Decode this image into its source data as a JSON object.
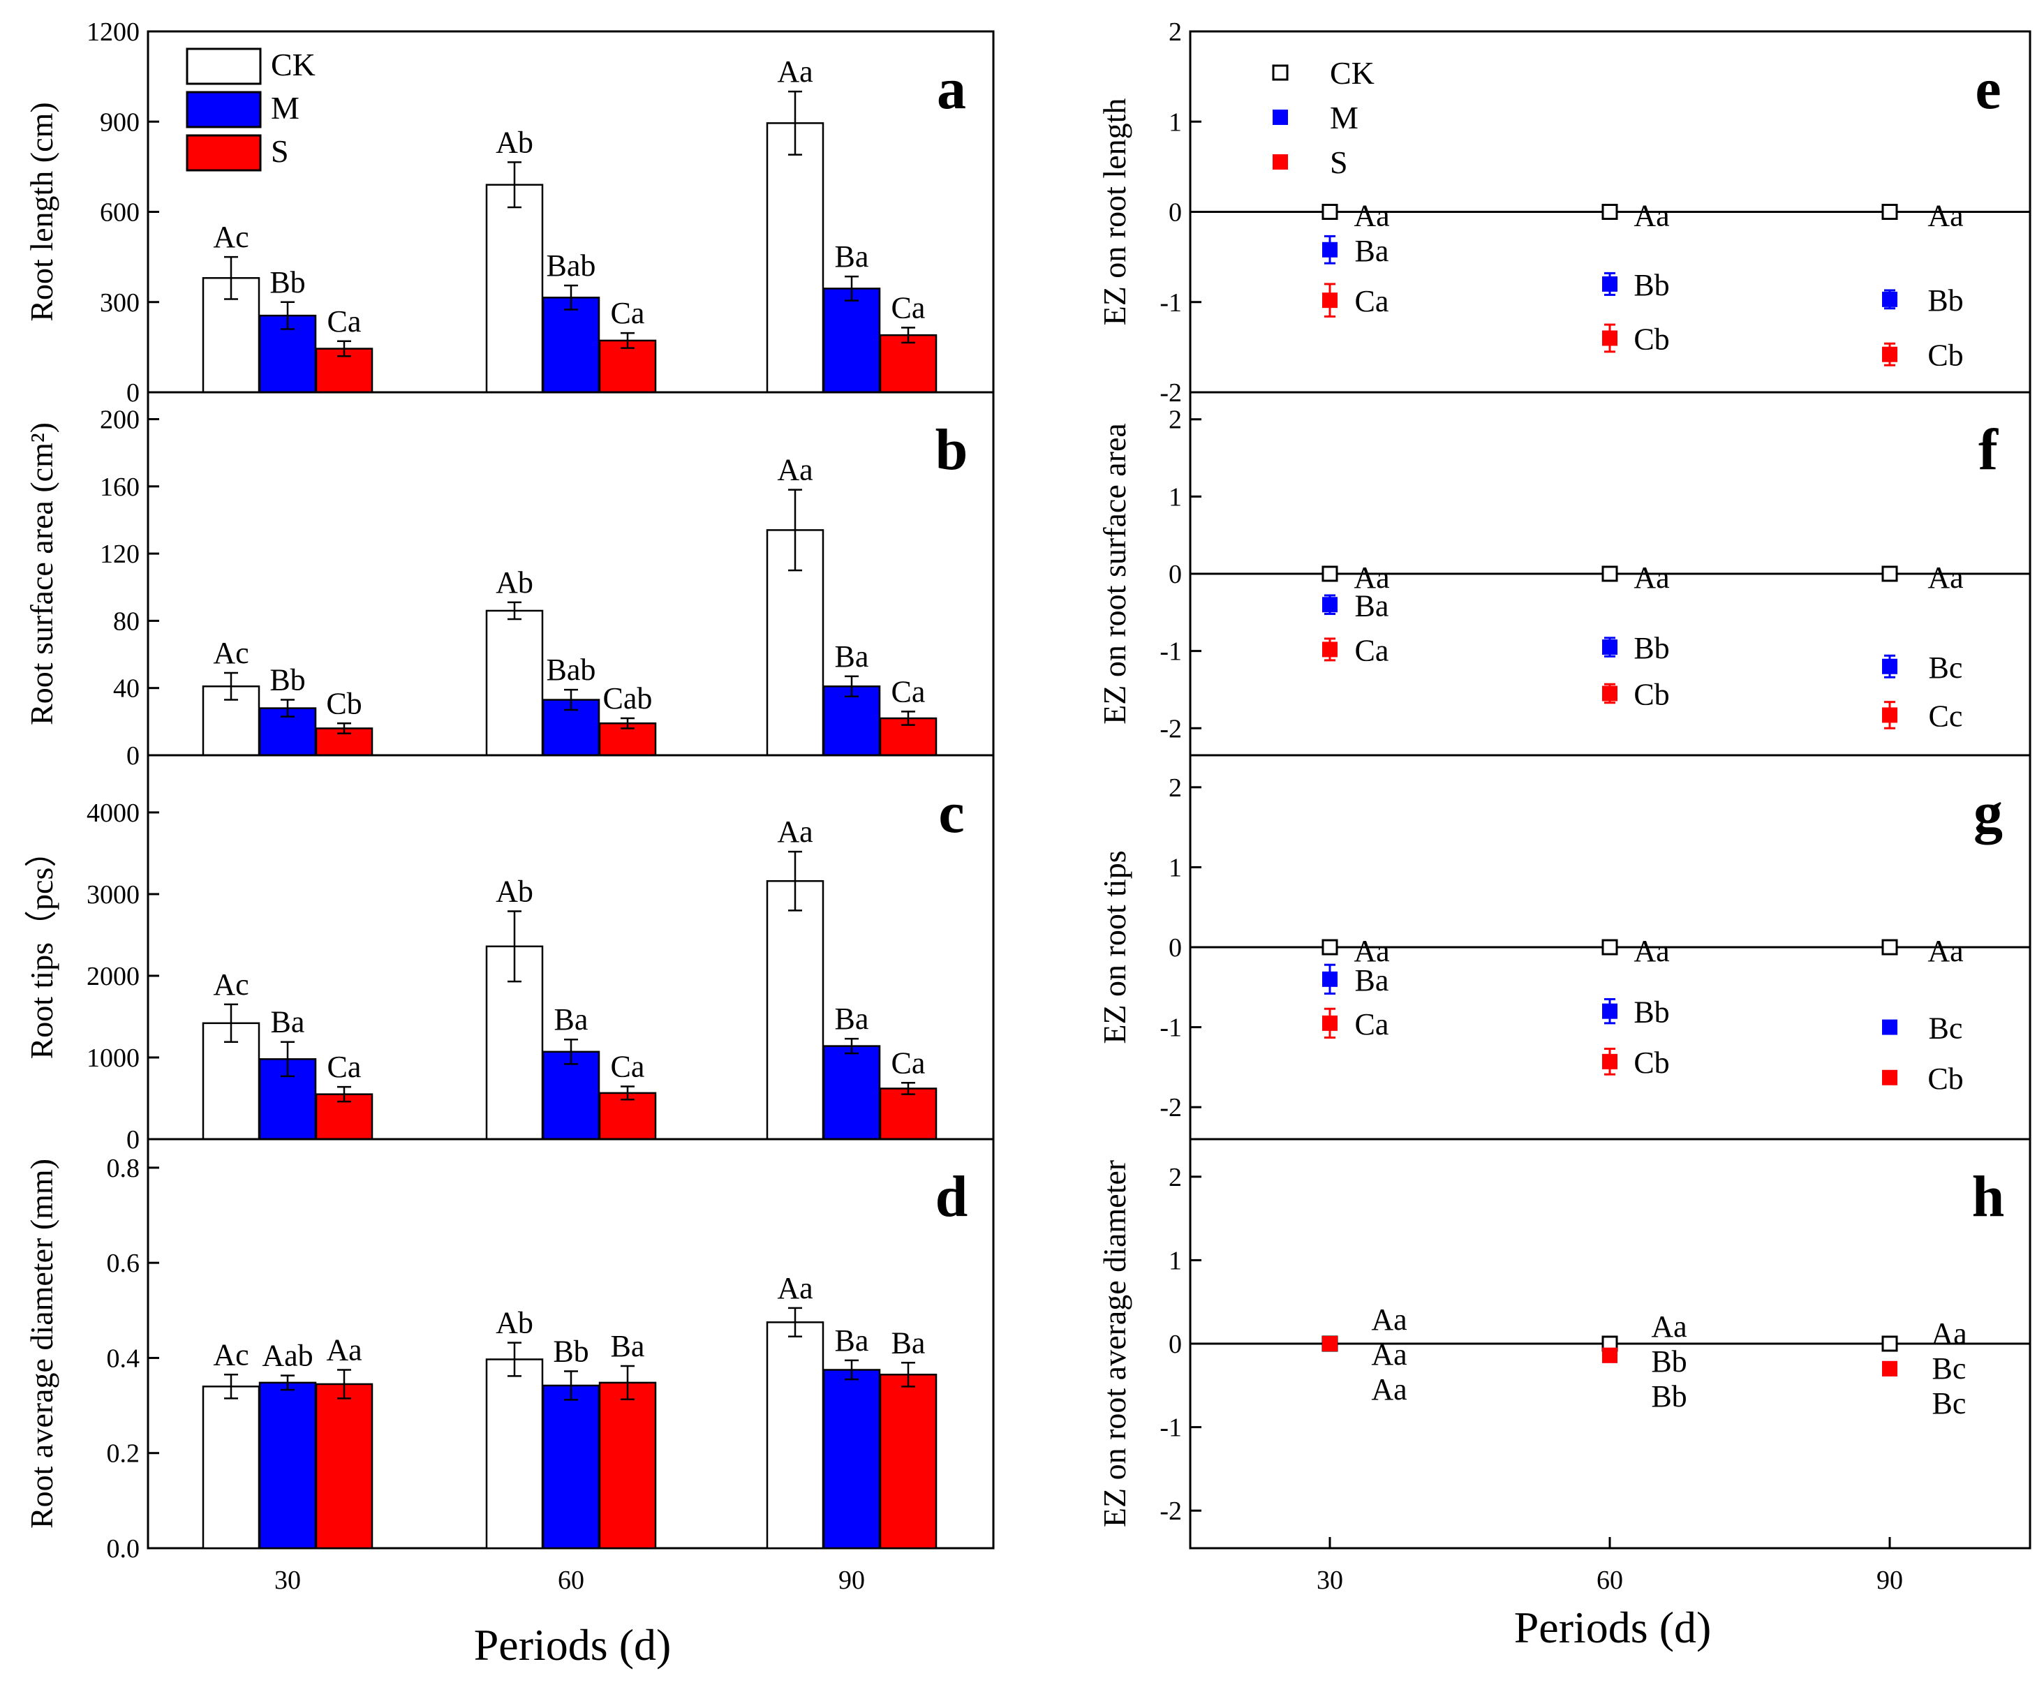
{
  "xaxis_title": "Periods (d)",
  "chart_data": [
    {
      "panel": "a",
      "type": "bar",
      "ylabel": "Root length (cm)",
      "categories": [
        "30",
        "60",
        "90"
      ],
      "ylim": [
        0,
        1200
      ],
      "yticks": [
        "0",
        "300",
        "600",
        "900",
        "1200"
      ],
      "series": [
        {
          "name": "CK",
          "values": [
            380,
            690,
            895
          ],
          "errors": [
            70,
            75,
            105
          ],
          "labels": [
            "Ac",
            "Ab",
            "Aa"
          ]
        },
        {
          "name": "M",
          "values": [
            255,
            315,
            345
          ],
          "errors": [
            45,
            40,
            40
          ],
          "labels": [
            "Bb",
            "Bab",
            "Ba"
          ]
        },
        {
          "name": "S",
          "values": [
            145,
            172,
            190
          ],
          "errors": [
            25,
            25,
            25
          ],
          "labels": [
            "Ca",
            "Ca",
            "Ca"
          ]
        }
      ]
    },
    {
      "panel": "b",
      "type": "bar",
      "ylabel": "Root surface area (cm²)",
      "categories": [
        "30",
        "60",
        "90"
      ],
      "ylim": [
        0,
        216
      ],
      "yticks": [
        "0",
        "40",
        "80",
        "120",
        "160",
        "200"
      ],
      "series": [
        {
          "name": "CK",
          "values": [
            41,
            86,
            134
          ],
          "errors": [
            8,
            5,
            24
          ],
          "labels": [
            "Ac",
            "Ab",
            "Aa"
          ]
        },
        {
          "name": "M",
          "values": [
            28,
            33,
            41
          ],
          "errors": [
            5,
            6,
            6
          ],
          "labels": [
            "Bb",
            "Bab",
            "Ba"
          ]
        },
        {
          "name": "S",
          "values": [
            16,
            19,
            22
          ],
          "errors": [
            3,
            3,
            4
          ],
          "labels": [
            "Cb",
            "Cab",
            "Ca"
          ]
        }
      ]
    },
    {
      "panel": "c",
      "type": "bar",
      "ylabel": "Root tips（pcs）",
      "categories": [
        "30",
        "60",
        "90"
      ],
      "ylim": [
        0,
        4700
      ],
      "yticks": [
        "0",
        "1000",
        "2000",
        "3000",
        "4000"
      ],
      "series": [
        {
          "name": "CK",
          "values": [
            1420,
            2360,
            3160
          ],
          "errors": [
            230,
            430,
            360
          ],
          "labels": [
            "Ac",
            "Ab",
            "Aa"
          ]
        },
        {
          "name": "M",
          "values": [
            980,
            1070,
            1140
          ],
          "errors": [
            210,
            150,
            90
          ],
          "labels": [
            "Ba",
            "Ba",
            "Ba"
          ]
        },
        {
          "name": "S",
          "values": [
            550,
            565,
            620
          ],
          "errors": [
            90,
            80,
            70
          ],
          "labels": [
            "Ca",
            "Ca",
            "Ca"
          ]
        }
      ]
    },
    {
      "panel": "d",
      "type": "bar",
      "ylabel": "Root average diameter (mm)",
      "categories": [
        "30",
        "60",
        "90"
      ],
      "ylim": [
        0,
        0.86
      ],
      "yticks": [
        "0.0",
        "0.2",
        "0.4",
        "0.6",
        "0.8"
      ],
      "series": [
        {
          "name": "CK",
          "values": [
            0.34,
            0.397,
            0.475
          ],
          "errors": [
            0.025,
            0.035,
            0.03
          ],
          "labels": [
            "Ac",
            "Ab",
            "Aa"
          ]
        },
        {
          "name": "M",
          "values": [
            0.348,
            0.342,
            0.375
          ],
          "errors": [
            0.015,
            0.03,
            0.02
          ],
          "labels": [
            "Aab",
            "Bb",
            "Ba"
          ]
        },
        {
          "name": "S",
          "values": [
            0.345,
            0.348,
            0.365
          ],
          "errors": [
            0.03,
            0.035,
            0.025
          ],
          "labels": [
            "Aa",
            "Ba",
            "Ba"
          ]
        }
      ]
    },
    {
      "panel": "e",
      "type": "scatter",
      "ylabel": "EZ on root length",
      "categories": [
        "30",
        "60",
        "90"
      ],
      "ylim": [
        -2,
        2
      ],
      "yticks": [
        "2",
        "1",
        "0",
        "-1",
        "-2"
      ],
      "series": [
        {
          "name": "CK",
          "values": [
            0,
            0,
            0
          ],
          "errors": [
            0,
            0,
            0
          ],
          "labels": [
            "Aa",
            "Aa",
            "Aa"
          ]
        },
        {
          "name": "M",
          "values": [
            -0.42,
            -0.8,
            -0.97
          ],
          "errors": [
            0.15,
            0.12,
            0.1
          ],
          "labels": [
            "Ba",
            "Bb",
            "Bb"
          ]
        },
        {
          "name": "S",
          "values": [
            -0.98,
            -1.4,
            -1.58
          ],
          "errors": [
            0.18,
            0.15,
            0.12
          ],
          "labels": [
            "Ca",
            "Cb",
            "Cb"
          ]
        }
      ]
    },
    {
      "panel": "f",
      "type": "scatter",
      "ylabel": "EZ on root surface area",
      "categories": [
        "30",
        "60",
        "90"
      ],
      "ylim": [
        -2.35,
        2.35
      ],
      "yticks": [
        "2",
        "1",
        "0",
        "-1",
        "-2"
      ],
      "series": [
        {
          "name": "CK",
          "values": [
            0,
            0,
            0
          ],
          "errors": [
            0,
            0,
            0
          ],
          "labels": [
            "Aa",
            "Aa",
            "Aa"
          ]
        },
        {
          "name": "M",
          "values": [
            -0.4,
            -0.95,
            -1.2
          ],
          "errors": [
            0.12,
            0.12,
            0.14
          ],
          "labels": [
            "Ba",
            "Bb",
            "Bc"
          ]
        },
        {
          "name": "S",
          "values": [
            -0.98,
            -1.55,
            -1.83
          ],
          "errors": [
            0.14,
            0.12,
            0.17
          ],
          "labels": [
            "Ca",
            "Cb",
            "Cc"
          ]
        }
      ]
    },
    {
      "panel": "g",
      "type": "scatter",
      "ylabel": "EZ on root tips",
      "categories": [
        "30",
        "60",
        "90"
      ],
      "ylim": [
        -2.4,
        2.4
      ],
      "yticks": [
        "2",
        "1",
        "0",
        "-1",
        "-2"
      ],
      "series": [
        {
          "name": "CK",
          "values": [
            0,
            0,
            0
          ],
          "errors": [
            0,
            0,
            0
          ],
          "labels": [
            "Aa",
            "Aa",
            "Aa"
          ]
        },
        {
          "name": "M",
          "values": [
            -0.4,
            -0.8,
            -1.0
          ],
          "errors": [
            0.18,
            0.15,
            0.05
          ],
          "labels": [
            "Ba",
            "Bb",
            "Bc"
          ]
        },
        {
          "name": "S",
          "values": [
            -0.95,
            -1.43,
            -1.63
          ],
          "errors": [
            0.18,
            0.16,
            0.08
          ],
          "labels": [
            "Ca",
            "Cb",
            "Cb"
          ]
        }
      ]
    },
    {
      "panel": "h",
      "type": "scatter",
      "ylabel": "EZ on root average diameter",
      "categories": [
        "30",
        "60",
        "90"
      ],
      "ylim": [
        -2.45,
        2.45
      ],
      "yticks": [
        "2",
        "1",
        "0",
        "-1",
        "-2"
      ],
      "series": [
        {
          "name": "CK",
          "values": [
            0,
            0,
            0
          ],
          "errors": [
            0,
            0,
            0
          ],
          "labels": [
            "Aa",
            "Aa",
            "Aa"
          ]
        },
        {
          "name": "M",
          "values": [
            0,
            -0.14,
            -0.3
          ],
          "errors": [
            0.03,
            0.05,
            0.07
          ],
          "labels": [
            "Aa",
            "Bb",
            "Bc"
          ]
        },
        {
          "name": "S",
          "values": [
            0,
            -0.14,
            -0.3
          ],
          "errors": [
            0.03,
            0.05,
            0.07
          ],
          "labels": [
            "Aa",
            "Bb",
            "Bc"
          ]
        }
      ]
    }
  ],
  "colors": {
    "CK": "#ffffff",
    "M": "#0000ff",
    "S": "#ff0000",
    "axis": "#000000"
  }
}
